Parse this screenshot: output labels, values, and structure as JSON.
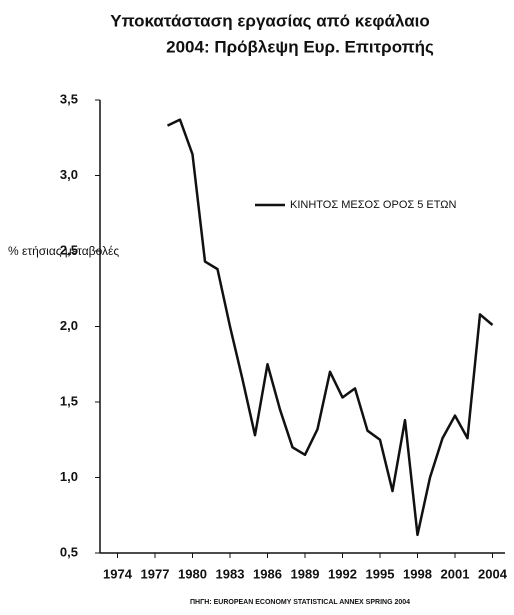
{
  "chart_data": {
    "type": "line",
    "title": "Υποκατάσταση εργασίας από κεφάλαιο",
    "subtitle": "2004: Πρόβλεψη Ευρ. Επιτροπής",
    "y_label": "% ετήσιας μεταβολές",
    "source": "ΠΗΓΗ: EUROPEAN ECONOMY STATISTICAL ANNEX SPRING 2004",
    "x": [
      1978,
      1979,
      1980,
      1981,
      1982,
      1983,
      1984,
      1985,
      1986,
      1987,
      1988,
      1989,
      1990,
      1991,
      1992,
      1993,
      1994,
      1995,
      1996,
      1997,
      1998,
      1999,
      2000,
      2001,
      2002,
      2003,
      2004
    ],
    "series": [
      {
        "name": "ΚΙΝΗΤΟΣ ΜΕΣΟΣ ΟΡΟΣ 5 ΕΤΩΝ",
        "color": "#111111",
        "values": [
          3.33,
          3.37,
          3.14,
          2.43,
          2.38,
          2.0,
          1.65,
          1.28,
          1.75,
          1.45,
          1.2,
          1.15,
          1.32,
          1.7,
          1.53,
          1.59,
          1.31,
          1.25,
          0.91,
          1.38,
          0.62,
          1.0,
          1.26,
          1.41,
          1.26,
          2.08,
          2.01
        ]
      }
    ],
    "xlim": [
      1973,
      2005
    ],
    "xticks": [
      1974,
      1977,
      1980,
      1983,
      1986,
      1989,
      1992,
      1995,
      1998,
      2001,
      2004
    ],
    "ylim": [
      0.5,
      3.5
    ],
    "yticks": [
      {
        "value": 0.5,
        "label": "0,5"
      },
      {
        "value": 1.0,
        "label": "1,0"
      },
      {
        "value": 1.5,
        "label": "1,5"
      },
      {
        "value": 2.0,
        "label": "2,0"
      },
      {
        "value": 2.5,
        "label": "2,5"
      },
      {
        "value": 3.0,
        "label": "3,0"
      },
      {
        "value": 3.5,
        "label": "3,5"
      }
    ],
    "grid": false
  }
}
